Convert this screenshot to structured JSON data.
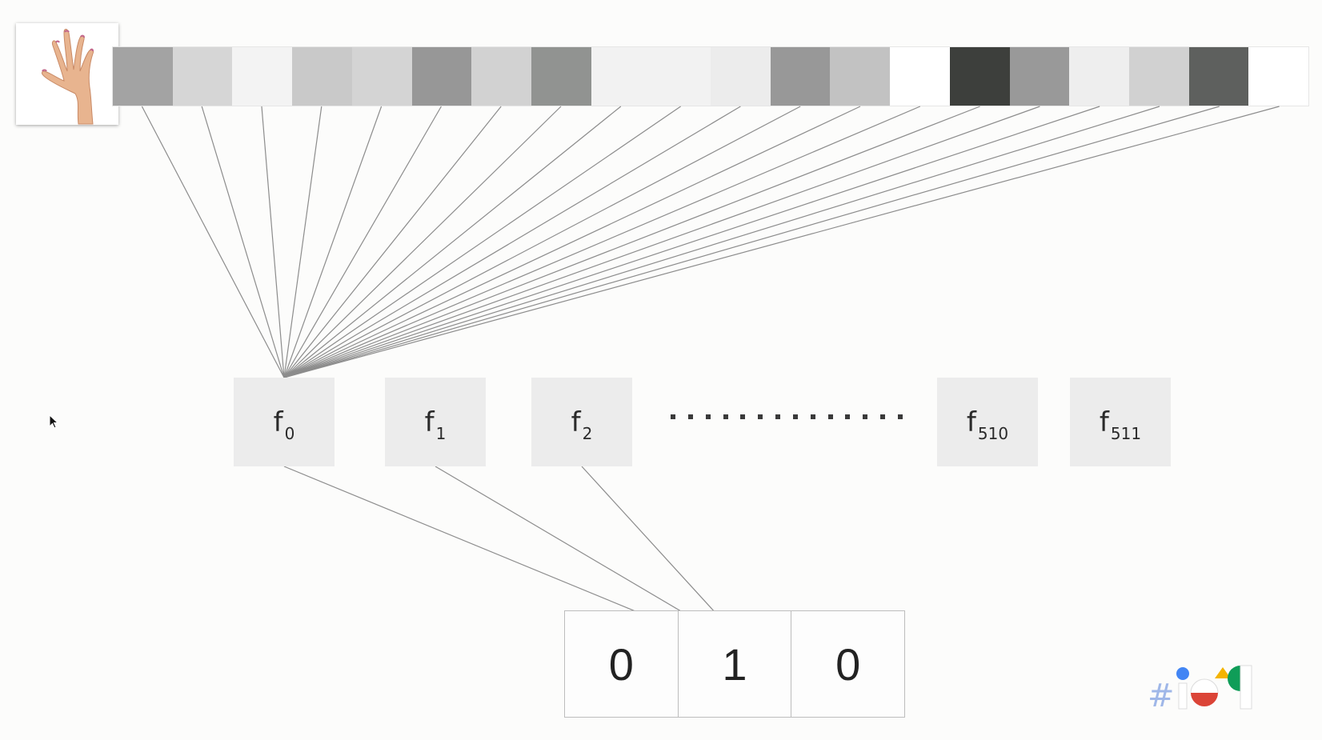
{
  "thumbnail": {
    "icon": "hand-icon"
  },
  "pixel_strip": {
    "colors": [
      "#a3a3a3",
      "#d6d6d6",
      "#f3f3f3",
      "#c9c9c9",
      "#d4d4d4",
      "#979797",
      "#d2d2d2",
      "#919391",
      "#f2f2f2",
      "#f2f2f2",
      "#ececec",
      "#989898",
      "#c2c2c2",
      "#ffffff",
      "#3d3f3c",
      "#999999",
      "#eeeeee",
      "#d1d1d1",
      "#5e605e",
      "#ffffff"
    ]
  },
  "features": [
    {
      "base": "f",
      "sub": "0"
    },
    {
      "base": "f",
      "sub": "1"
    },
    {
      "base": "f",
      "sub": "2"
    },
    {
      "base": "f",
      "sub": "510"
    },
    {
      "base": "f",
      "sub": "511"
    }
  ],
  "output": {
    "cells": [
      "0",
      "1",
      "0"
    ]
  },
  "logo": {
    "hash": "#",
    "icon": "google-io-logo-icon",
    "colors": [
      "#4285f4",
      "#db4437",
      "#f4b400",
      "#0f9d58"
    ]
  },
  "cursor": {
    "icon": "mouse-pointer-icon"
  }
}
